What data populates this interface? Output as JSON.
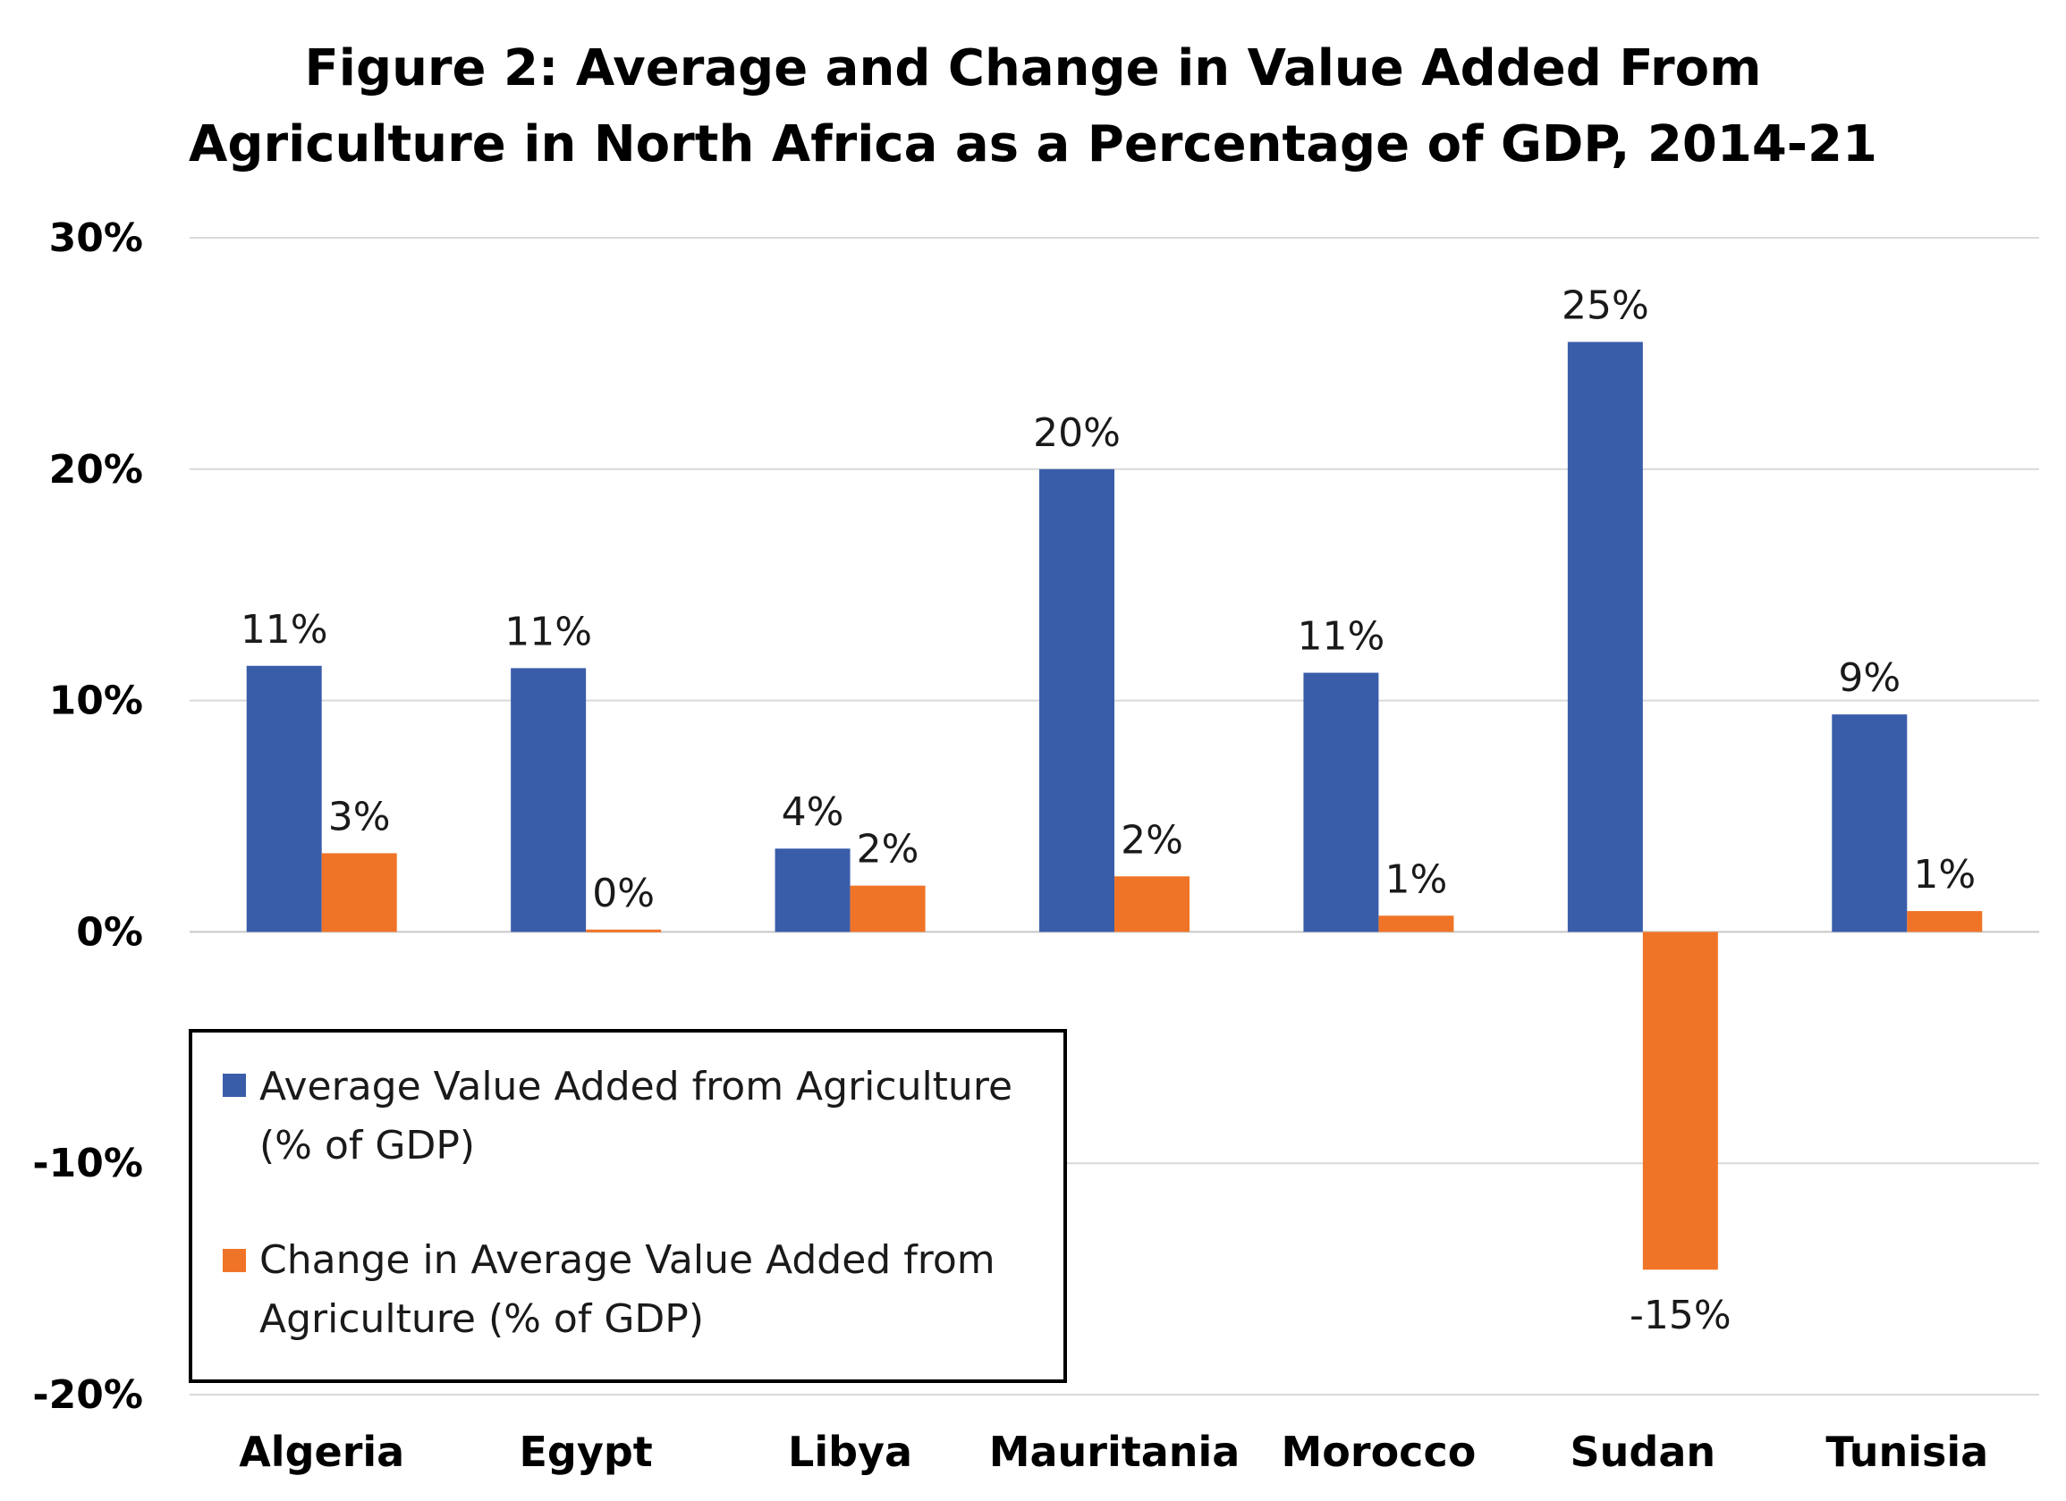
{
  "chart_data": {
    "type": "bar",
    "title": "Figure 2: Average and Change in Value Added From Agriculture in North Africa as a Percentage of GDP, 2014-21",
    "title_lines": [
      "Figure 2: Average and Change in Value Added From",
      "Agriculture in North Africa as a Percentage of GDP, 2014-21"
    ],
    "categories": [
      "Algeria",
      "Egypt",
      "Libya",
      "Mauritania",
      "Morocco",
      "Sudan",
      "Tunisia"
    ],
    "series": [
      {
        "name": "Average Value Added from Agriculture (% of GDP)",
        "legend_lines": [
          "Average Value Added from Agriculture",
          "(% of GDP)"
        ],
        "color": "#3A5DAA",
        "values": [
          11.5,
          11.4,
          3.6,
          20.0,
          11.2,
          25.5,
          9.4
        ],
        "labels": [
          "11%",
          "11%",
          "4%",
          "20%",
          "11%",
          "25%",
          "9%"
        ]
      },
      {
        "name": "Change in Average Value Added from Agriculture (% of GDP)",
        "legend_lines": [
          "Change in Average Value Added from",
          "Agriculture (% of GDP)"
        ],
        "color": "#F07427",
        "values": [
          3.4,
          0.1,
          2.0,
          2.4,
          0.7,
          -14.6,
          0.9
        ],
        "labels": [
          "3%",
          "0%",
          "2%",
          "2%",
          "1%",
          "-15%",
          "1%"
        ]
      }
    ],
    "ylim": [
      -20,
      30
    ],
    "yticks": [
      30,
      20,
      10,
      0,
      -10,
      -20
    ],
    "ytick_labels": [
      "30%",
      "20%",
      "10%",
      "0%",
      "-10%",
      "-20%"
    ],
    "xlabel": "",
    "ylabel": "",
    "grid": true,
    "legend_position": "lower-left"
  }
}
